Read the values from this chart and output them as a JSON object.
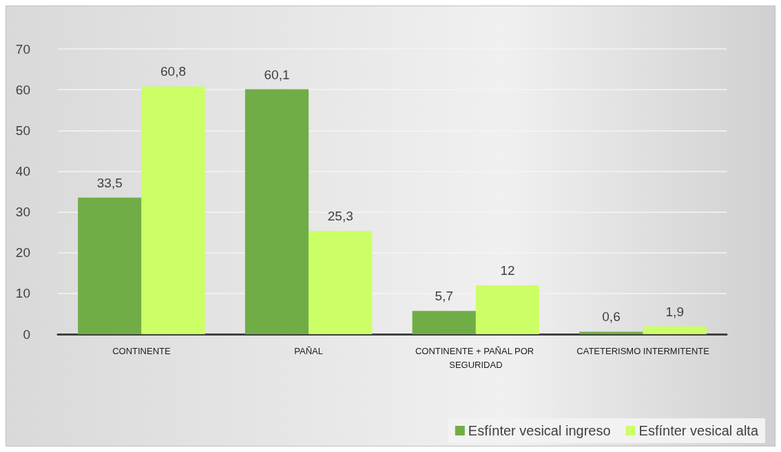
{
  "chart_data": {
    "type": "bar",
    "categories": [
      "CONTINENTE",
      "PAÑAL",
      "CONTINENTE + PAÑAL POR SEGURIDAD",
      "CATETERISMO INTERMITENTE"
    ],
    "series": [
      {
        "name": "Esfínter vesical ingreso",
        "color": "#70ad47",
        "values": [
          33.5,
          60.1,
          5.7,
          0.6
        ],
        "value_labels": [
          "33,5",
          "60,1",
          "5,7",
          "0,6"
        ]
      },
      {
        "name": "Esfínter vesical alta",
        "color": "#ccff66",
        "values": [
          60.8,
          25.3,
          12,
          1.9
        ],
        "value_labels": [
          "60,8",
          "25,3",
          "12",
          "1,9"
        ]
      }
    ],
    "ylim": [
      0,
      70
    ],
    "yticks": [
      0,
      10,
      20,
      30,
      40,
      50,
      60,
      70
    ],
    "grid": "y",
    "legend": "bottom right"
  }
}
